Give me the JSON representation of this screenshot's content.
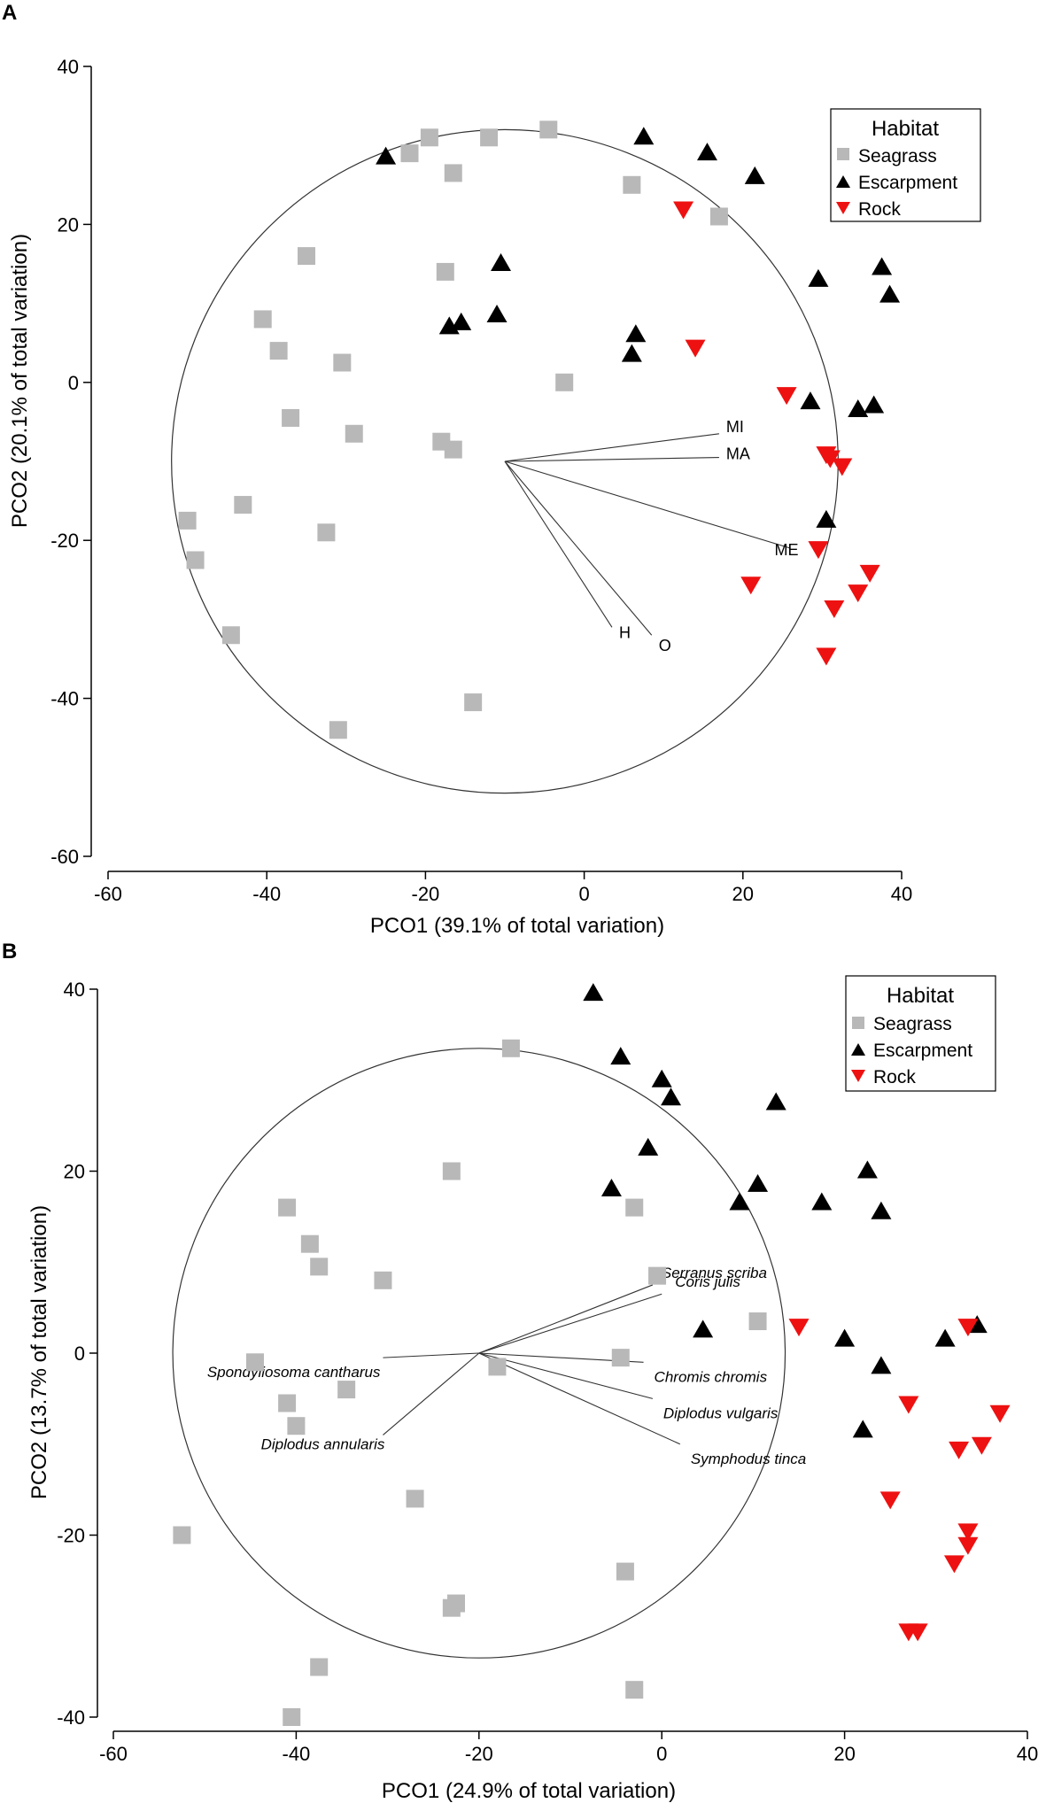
{
  "colors": {
    "seagrass": "#b8b8b8",
    "escarpment": "#000000",
    "rock": "#ee1111",
    "axis": "#000000",
    "circle": "#333333"
  },
  "chart_data": [
    {
      "panel": "A",
      "type": "scatter",
      "xlabel": "PCO1 (39.1% of total variation)",
      "ylabel": "PCO2 (20.1% of total variation)",
      "xlim": [
        -60,
        40
      ],
      "ylim": [
        -60,
        40
      ],
      "xticks": [
        -60,
        -40,
        -20,
        0,
        20,
        40
      ],
      "yticks": [
        -60,
        -40,
        -20,
        0,
        20,
        40
      ],
      "legend": {
        "title": "Habitat",
        "entries": [
          "Seagrass",
          "Escarpment",
          "Rock"
        ],
        "position": "top-right"
      },
      "correlation_circle": {
        "center": [
          -10,
          -10
        ],
        "radius": 42
      },
      "vectors": [
        {
          "label": "MI",
          "end": [
            17,
            -6.5
          ]
        },
        {
          "label": "MA",
          "end": [
            17,
            -9.5
          ]
        },
        {
          "label": "ME",
          "end": [
            26,
            -21
          ]
        },
        {
          "label": "H",
          "end": [
            3.5,
            -31
          ]
        },
        {
          "label": "O",
          "end": [
            8.5,
            -32
          ]
        }
      ],
      "series": [
        {
          "name": "Seagrass",
          "marker": "square",
          "points": [
            [
              -22,
              29
            ],
            [
              -19.5,
              31
            ],
            [
              -16.5,
              26.5
            ],
            [
              -4.5,
              32
            ],
            [
              -12,
              31
            ],
            [
              6,
              25
            ],
            [
              17,
              21
            ],
            [
              -35,
              16
            ],
            [
              -17.5,
              14
            ],
            [
              -40.5,
              8
            ],
            [
              -38.5,
              4
            ],
            [
              -30.5,
              2.5
            ],
            [
              -2.5,
              0
            ],
            [
              -37,
              -4.5
            ],
            [
              -29,
              -6.5
            ],
            [
              -18,
              -7.5
            ],
            [
              -16.5,
              -8.5
            ],
            [
              -43,
              -15.5
            ],
            [
              -50,
              -17.5
            ],
            [
              -32.5,
              -19
            ],
            [
              -49,
              -22.5
            ],
            [
              -44.5,
              -32
            ],
            [
              -14,
              -40.5
            ],
            [
              -31,
              -44
            ]
          ]
        },
        {
          "name": "Escarpment",
          "marker": "triangle-up",
          "points": [
            [
              -25,
              28.5
            ],
            [
              7.5,
              31
            ],
            [
              15.5,
              29
            ],
            [
              21.5,
              26
            ],
            [
              29.5,
              13
            ],
            [
              37.5,
              14.5
            ],
            [
              38.5,
              11
            ],
            [
              -10.5,
              15
            ],
            [
              -11,
              8.5
            ],
            [
              -17,
              7
            ],
            [
              -15.5,
              7.5
            ],
            [
              6.5,
              6
            ],
            [
              6,
              3.5
            ],
            [
              28.5,
              -2.5
            ],
            [
              34.5,
              -3.5
            ],
            [
              36.5,
              -3
            ],
            [
              30.5,
              -17.5
            ]
          ]
        },
        {
          "name": "Rock",
          "marker": "triangle-down",
          "points": [
            [
              12.5,
              22
            ],
            [
              14,
              4.5
            ],
            [
              25.5,
              -1.5
            ],
            [
              30.5,
              -9
            ],
            [
              31,
              -9.5
            ],
            [
              32.5,
              -10.5
            ],
            [
              29.5,
              -21
            ],
            [
              21,
              -25.5
            ],
            [
              36,
              -24
            ],
            [
              34.5,
              -26.5
            ],
            [
              31.5,
              -28.5
            ],
            [
              30.5,
              -34.5
            ]
          ]
        }
      ]
    },
    {
      "panel": "B",
      "type": "scatter",
      "xlabel": "PCO1 (24.9% of total variation)",
      "ylabel": "PCO2 (13.7% of total variation)",
      "xlim": [
        -60,
        40
      ],
      "ylim": [
        -40,
        40
      ],
      "xticks": [
        -60,
        -40,
        -20,
        0,
        20,
        40
      ],
      "yticks": [
        -40,
        -20,
        0,
        20,
        40
      ],
      "legend": {
        "title": "Habitat",
        "entries": [
          "Seagrass",
          "Escarpment",
          "Rock"
        ],
        "position": "top-right"
      },
      "correlation_circle": {
        "center": [
          -20,
          0
        ],
        "radius": 33.5
      },
      "vectors": [
        {
          "label": "Serranus scriba",
          "end": [
            -1,
            7.5
          ]
        },
        {
          "label": "Coris julis",
          "end": [
            0,
            6.5
          ]
        },
        {
          "label": "Chromis chromis",
          "end": [
            -2,
            -1
          ]
        },
        {
          "label": "Diplodus vulgaris",
          "end": [
            -1,
            -5
          ]
        },
        {
          "label": "Symphodus tinca",
          "end": [
            2,
            -10
          ]
        },
        {
          "label": "Spondyliosoma cantharus",
          "end": [
            -30.5,
            -0.5
          ]
        },
        {
          "label": "Diplodus annularis",
          "end": [
            -30.5,
            -9
          ]
        }
      ],
      "series": [
        {
          "name": "Seagrass",
          "marker": "square",
          "points": [
            [
              -16.5,
              33.5
            ],
            [
              -23,
              20
            ],
            [
              -3,
              16
            ],
            [
              -41,
              16
            ],
            [
              -38.5,
              12
            ],
            [
              -37.5,
              9.5
            ],
            [
              -30.5,
              8
            ],
            [
              -0.5,
              8.5
            ],
            [
              10.5,
              3.5
            ],
            [
              -44.5,
              -1
            ],
            [
              -4.5,
              -0.5
            ],
            [
              -18,
              -1.5
            ],
            [
              -34.5,
              -4
            ],
            [
              -41,
              -5.5
            ],
            [
              -40,
              -8
            ],
            [
              -27,
              -16
            ],
            [
              -52.5,
              -20
            ],
            [
              -4,
              -24
            ],
            [
              -22.5,
              -27.5
            ],
            [
              -23,
              -28
            ],
            [
              -37.5,
              -34.5
            ],
            [
              -3,
              -37
            ],
            [
              -40.5,
              -40
            ]
          ]
        },
        {
          "name": "Escarpment",
          "marker": "triangle-up",
          "points": [
            [
              -7.5,
              39.5
            ],
            [
              -4.5,
              32.5
            ],
            [
              0,
              30
            ],
            [
              1,
              28
            ],
            [
              12.5,
              27.5
            ],
            [
              -1.5,
              22.5
            ],
            [
              22.5,
              20
            ],
            [
              -5.5,
              18
            ],
            [
              10.5,
              18.5
            ],
            [
              8.5,
              16.5
            ],
            [
              17.5,
              16.5
            ],
            [
              24,
              15.5
            ],
            [
              4.5,
              2.5
            ],
            [
              20,
              1.5
            ],
            [
              31,
              1.5
            ],
            [
              34.5,
              3
            ],
            [
              24,
              -1.5
            ],
            [
              22,
              -8.5
            ]
          ]
        },
        {
          "name": "Rock",
          "marker": "triangle-down",
          "points": [
            [
              15,
              3
            ],
            [
              33.5,
              3
            ],
            [
              27,
              -5.5
            ],
            [
              37,
              -6.5
            ],
            [
              32.5,
              -10.5
            ],
            [
              35,
              -10
            ],
            [
              25,
              -16
            ],
            [
              33.5,
              -19.5
            ],
            [
              33.5,
              -21
            ],
            [
              32,
              -23
            ],
            [
              27,
              -30.5
            ],
            [
              28,
              -30.5
            ]
          ]
        }
      ]
    }
  ]
}
